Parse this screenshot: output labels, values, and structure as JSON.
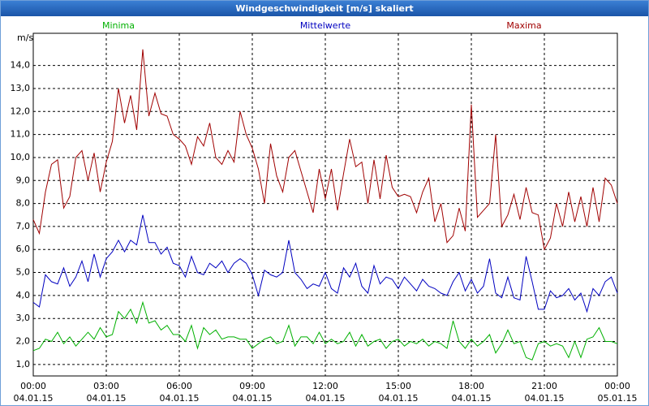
{
  "chart_data": {
    "type": "line",
    "title": "Windgeschwindigkeit [m/s] skaliert",
    "y_label": "m/s",
    "x": [
      0,
      0.25,
      0.5,
      0.75,
      1,
      1.25,
      1.5,
      1.75,
      2,
      2.25,
      2.5,
      2.75,
      3,
      3.25,
      3.5,
      3.75,
      4,
      4.25,
      4.5,
      4.75,
      5,
      5.25,
      5.5,
      5.75,
      6,
      6.25,
      6.5,
      6.75,
      7,
      7.25,
      7.5,
      7.75,
      8,
      8.25,
      8.5,
      8.75,
      9,
      9.25,
      9.5,
      9.75,
      10,
      10.25,
      10.5,
      10.75,
      11,
      11.25,
      11.5,
      11.75,
      12,
      12.25,
      12.5,
      12.75,
      13,
      13.25,
      13.5,
      13.75,
      14,
      14.25,
      14.5,
      14.75,
      15,
      15.25,
      15.5,
      15.75,
      16,
      16.25,
      16.5,
      16.75,
      17,
      17.25,
      17.5,
      17.75,
      18,
      18.25,
      18.5,
      18.75,
      19,
      19.25,
      19.5,
      19.75,
      20,
      20.25,
      20.5,
      20.75,
      21,
      21.25,
      21.5,
      21.75,
      22,
      22.25,
      22.5,
      22.75,
      23,
      23.25,
      23.5,
      23.75,
      24
    ],
    "series": [
      {
        "name": "Minima",
        "color": "#00b000",
        "values": [
          1.6,
          1.7,
          2.1,
          2.0,
          2.4,
          1.9,
          2.2,
          1.8,
          2.1,
          2.4,
          2.1,
          2.6,
          2.2,
          2.3,
          3.3,
          3.0,
          3.4,
          2.8,
          3.7,
          2.8,
          2.9,
          2.5,
          2.7,
          2.3,
          2.3,
          2.0,
          2.7,
          1.7,
          2.6,
          2.3,
          2.5,
          2.1,
          2.2,
          2.2,
          2.1,
          2.1,
          1.7,
          1.9,
          2.1,
          2.2,
          1.9,
          2.0,
          2.7,
          1.8,
          2.2,
          2.2,
          1.9,
          2.4,
          1.9,
          2.1,
          1.9,
          2.0,
          2.4,
          1.8,
          2.3,
          1.8,
          2.0,
          2.1,
          1.7,
          2.0,
          2.1,
          1.8,
          2.0,
          1.9,
          2.1,
          1.8,
          2.0,
          1.9,
          1.7,
          2.9,
          2.0,
          1.7,
          2.1,
          1.8,
          2.0,
          2.3,
          1.5,
          1.9,
          2.5,
          1.9,
          2.0,
          1.3,
          1.2,
          1.9,
          2.0,
          1.8,
          1.9,
          1.8,
          1.3,
          2.0,
          1.3,
          2.1,
          2.2,
          2.6,
          2.0,
          2.0,
          1.9
        ]
      },
      {
        "name": "Mittelwerte",
        "color": "#0000c0",
        "values": [
          3.7,
          3.5,
          4.9,
          4.6,
          4.5,
          5.2,
          4.4,
          4.8,
          5.5,
          4.6,
          5.8,
          4.8,
          5.6,
          5.9,
          6.4,
          5.9,
          6.4,
          6.2,
          7.5,
          6.3,
          6.3,
          5.8,
          6.1,
          5.4,
          5.3,
          4.8,
          5.7,
          5.0,
          4.9,
          5.4,
          5.2,
          5.5,
          5.0,
          5.4,
          5.6,
          5.4,
          4.9,
          4.0,
          5.1,
          4.9,
          4.8,
          5.0,
          6.4,
          5.0,
          4.7,
          4.3,
          4.5,
          4.4,
          5.0,
          4.3,
          4.1,
          5.2,
          4.8,
          5.4,
          4.4,
          4.1,
          5.3,
          4.5,
          4.8,
          4.7,
          4.3,
          4.8,
          4.5,
          4.2,
          4.7,
          4.4,
          4.3,
          4.1,
          4.0,
          4.6,
          5.0,
          4.2,
          4.7,
          4.1,
          4.4,
          5.6,
          4.1,
          3.9,
          4.8,
          3.9,
          3.8,
          5.7,
          4.6,
          3.4,
          3.4,
          4.2,
          3.9,
          4.0,
          4.3,
          3.8,
          4.1,
          3.3,
          4.3,
          4.0,
          4.6,
          4.8,
          4.1
        ]
      },
      {
        "name": "Maxima",
        "color": "#a00000",
        "values": [
          7.3,
          6.7,
          8.5,
          9.7,
          9.9,
          7.8,
          8.3,
          10.0,
          10.3,
          9.0,
          10.2,
          8.5,
          9.8,
          10.7,
          13.0,
          11.5,
          12.7,
          11.2,
          14.7,
          11.8,
          12.8,
          11.9,
          11.8,
          11.0,
          10.8,
          10.5,
          9.7,
          10.9,
          10.5,
          11.5,
          10.0,
          9.7,
          10.3,
          9.8,
          12.0,
          11.0,
          10.4,
          9.5,
          8.0,
          10.6,
          9.2,
          8.5,
          10.0,
          10.3,
          9.4,
          8.5,
          7.6,
          9.5,
          8.2,
          9.5,
          7.7,
          9.3,
          10.8,
          9.6,
          9.8,
          8.0,
          9.9,
          8.2,
          10.1,
          8.7,
          8.3,
          8.4,
          8.3,
          7.6,
          8.5,
          9.1,
          7.2,
          8.0,
          6.3,
          6.6,
          7.8,
          6.8,
          12.3,
          7.4,
          7.7,
          8.0,
          11.0,
          7.0,
          7.5,
          8.4,
          7.3,
          8.7,
          7.6,
          7.5,
          6.0,
          6.5,
          8.0,
          7.0,
          8.5,
          7.2,
          8.3,
          7.0,
          8.7,
          7.2,
          9.1,
          8.8,
          8.0
        ]
      }
    ],
    "xlim": [
      0,
      24
    ],
    "xticks": [
      {
        "value": 0,
        "label": "00:00 04.01.15"
      },
      {
        "value": 3,
        "label": "03:00 04.01.15"
      },
      {
        "value": 6,
        "label": "06:00 04.01.15"
      },
      {
        "value": 9,
        "label": "09:00 04.01.15"
      },
      {
        "value": 12,
        "label": "12:00 04.01.15"
      },
      {
        "value": 15,
        "label": "15:00 04.01.15"
      },
      {
        "value": 18,
        "label": "18:00 04.01.15"
      },
      {
        "value": 21,
        "label": "21:00 04.01.15"
      },
      {
        "value": 24,
        "label": "00:00 05.01.15"
      }
    ],
    "ylim": [
      0.5,
      15.4
    ],
    "yticks": [
      {
        "value": 1,
        "label": "1,0"
      },
      {
        "value": 2,
        "label": "2,0"
      },
      {
        "value": 3,
        "label": "3,0"
      },
      {
        "value": 4,
        "label": "4,0"
      },
      {
        "value": 5,
        "label": "5,0"
      },
      {
        "value": 6,
        "label": "6,0"
      },
      {
        "value": 7,
        "label": "7,0"
      },
      {
        "value": 8,
        "label": "8,0"
      },
      {
        "value": 9,
        "label": "9,0"
      },
      {
        "value": 10,
        "label": "10,0"
      },
      {
        "value": 11,
        "label": "11,0"
      },
      {
        "value": 12,
        "label": "12,0"
      },
      {
        "value": 13,
        "label": "13,0"
      },
      {
        "value": 14,
        "label": "14,0"
      }
    ],
    "grid": true
  }
}
